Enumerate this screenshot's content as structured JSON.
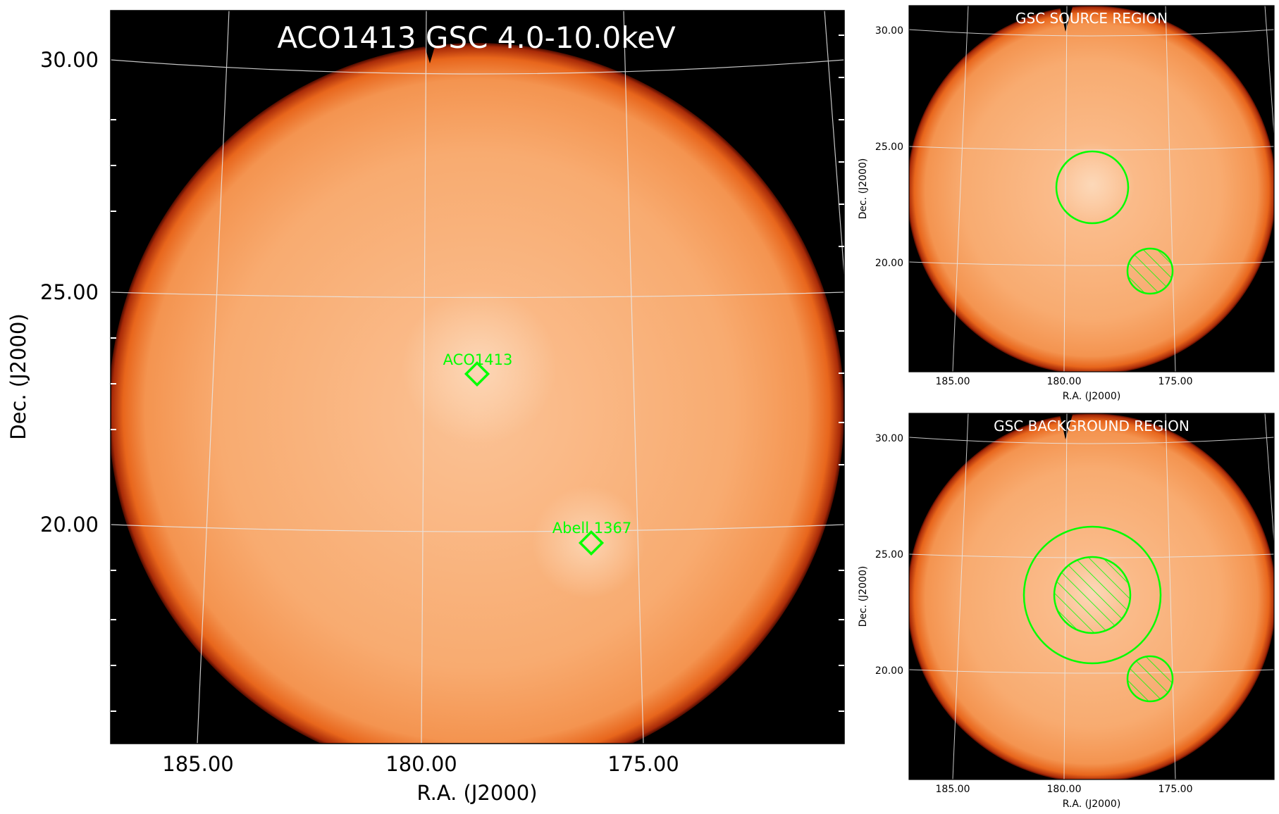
{
  "main_panel": {
    "title": "ACO1413 GSC 4.0-10.0keV",
    "ylabel": "Dec. (J2000)",
    "xlabel": "R.A. (J2000)",
    "y_ticks": [
      "30.00",
      "25.00",
      "20.00"
    ],
    "x_ticks": [
      "185.00",
      "180.00",
      "175.00"
    ],
    "markers": [
      {
        "label": "ACO1413",
        "ra": 178.8,
        "dec": 23.3,
        "color": "#00ff00"
      },
      {
        "label": "Abell 1367",
        "ra": 176.2,
        "dec": 19.6,
        "color": "#00ff00"
      }
    ]
  },
  "source_panel": {
    "title": "GSC SOURCE REGION",
    "ylabel": "Dec. (J2000)",
    "xlabel": "R.A. (J2000)",
    "y_ticks": [
      "30.00",
      "25.00",
      "20.00"
    ],
    "x_ticks": [
      "185.00",
      "180.00",
      "175.00"
    ]
  },
  "background_panel": {
    "title": "GSC BACKGROUND REGION",
    "ylabel": "Dec. (J2000)",
    "xlabel": "R.A. (J2000)",
    "y_ticks": [
      "30.00",
      "25.00",
      "20.00"
    ],
    "x_ticks": [
      "185.00",
      "180.00",
      "175.00"
    ]
  },
  "colors": {
    "background": "#000000",
    "disk_center": "#fbc499",
    "disk_body": "#f7a566",
    "disk_edge": "#e8661c",
    "rim": "#8a1a05",
    "grid": "#e8e8e8",
    "region": "#00ff00",
    "title_text": "#ffffff"
  }
}
